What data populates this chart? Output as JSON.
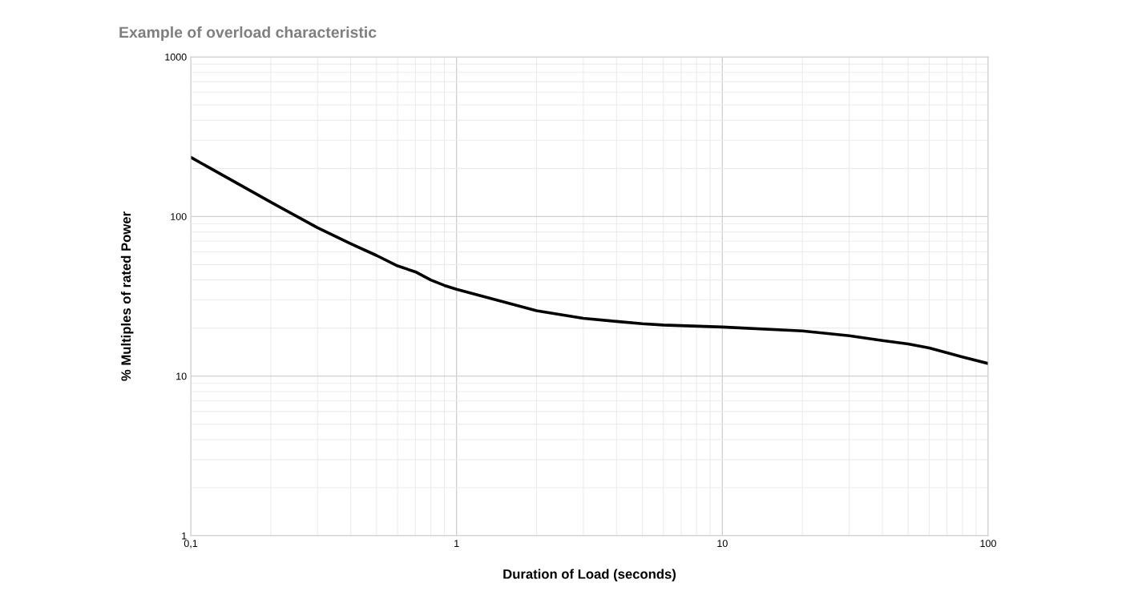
{
  "chart_data": {
    "type": "line",
    "title": "Example of overload characteristic",
    "xlabel": "Duration of Load (seconds)",
    "ylabel": "% Multiples of rated Power",
    "log": "xy",
    "grid": true,
    "xlim": [
      0.1,
      100
    ],
    "xticks": [
      {
        "value": 0.1,
        "label": "0,1"
      },
      1,
      10,
      100
    ],
    "ylim": [
      1,
      1000
    ],
    "yticks": [
      1,
      10,
      100,
      1000
    ],
    "x": [
      0.1,
      0.2,
      0.3,
      0.4,
      0.5,
      0.6,
      0.7,
      0.8,
      0.9,
      1,
      2,
      3,
      4,
      5,
      6,
      10,
      20,
      30,
      40,
      50,
      60,
      70,
      80,
      100
    ],
    "series": [
      {
        "color": "#000000",
        "values": [
          235,
          123,
          85,
          67.5,
          57,
          49,
          45,
          40,
          37,
          35,
          25.7,
          23,
          22,
          21.3,
          20.9,
          20.3,
          19.2,
          17.9,
          16.7,
          15.9,
          15,
          14,
          13.2,
          12
        ]
      }
    ]
  }
}
